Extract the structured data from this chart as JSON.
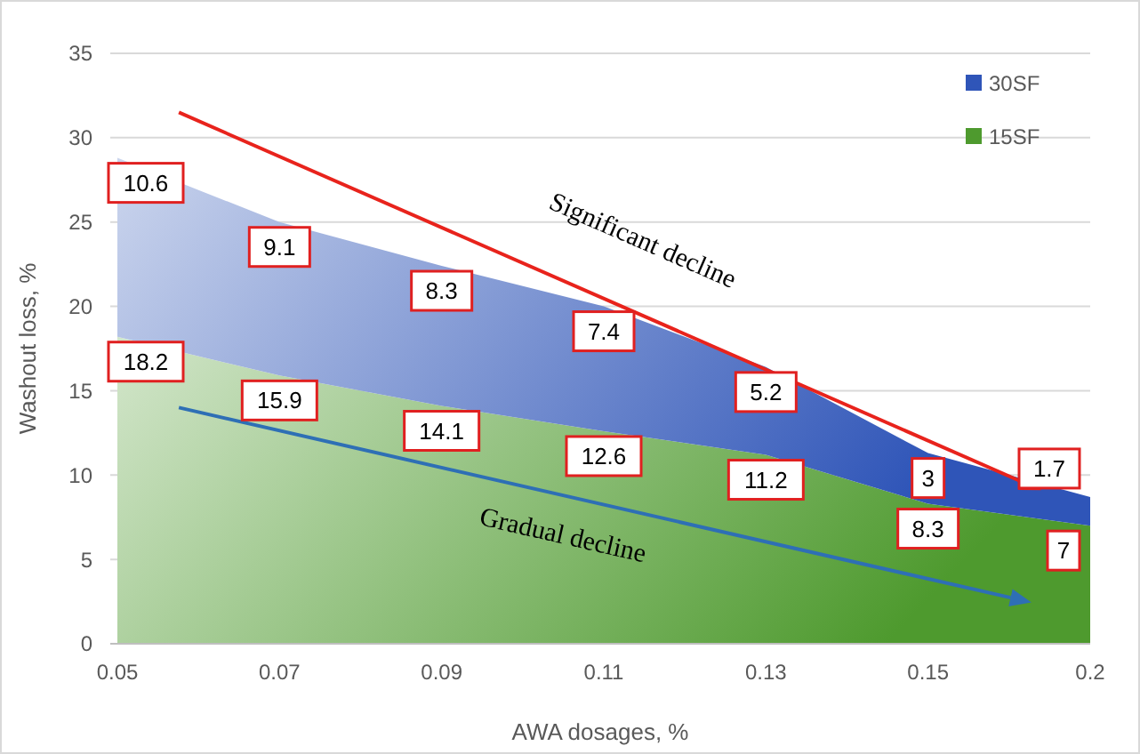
{
  "chart_data": {
    "type": "area",
    "stacked": true,
    "xlabel": "AWA dosages, %",
    "ylabel": "Washout loss, %",
    "categories": [
      "0.05",
      "0.07",
      "0.09",
      "0.11",
      "0.13",
      "0.15",
      "0.2"
    ],
    "series": [
      {
        "name": "15SF",
        "color": "#4e9a2e",
        "values": [
          18.2,
          15.9,
          14.1,
          12.6,
          11.2,
          8.3,
          7
        ]
      },
      {
        "name": "30SF",
        "color": "#2f55b8",
        "values": [
          10.6,
          9.1,
          8.3,
          7.4,
          5.2,
          3,
          1.7
        ]
      }
    ],
    "ylim": [
      0,
      35
    ],
    "yticks": [
      0,
      5,
      10,
      15,
      20,
      25,
      30,
      35
    ],
    "grid": "y",
    "legend": "top right",
    "data_labels": true,
    "annotations": [
      "Significant decline",
      "Gradual decline"
    ]
  }
}
